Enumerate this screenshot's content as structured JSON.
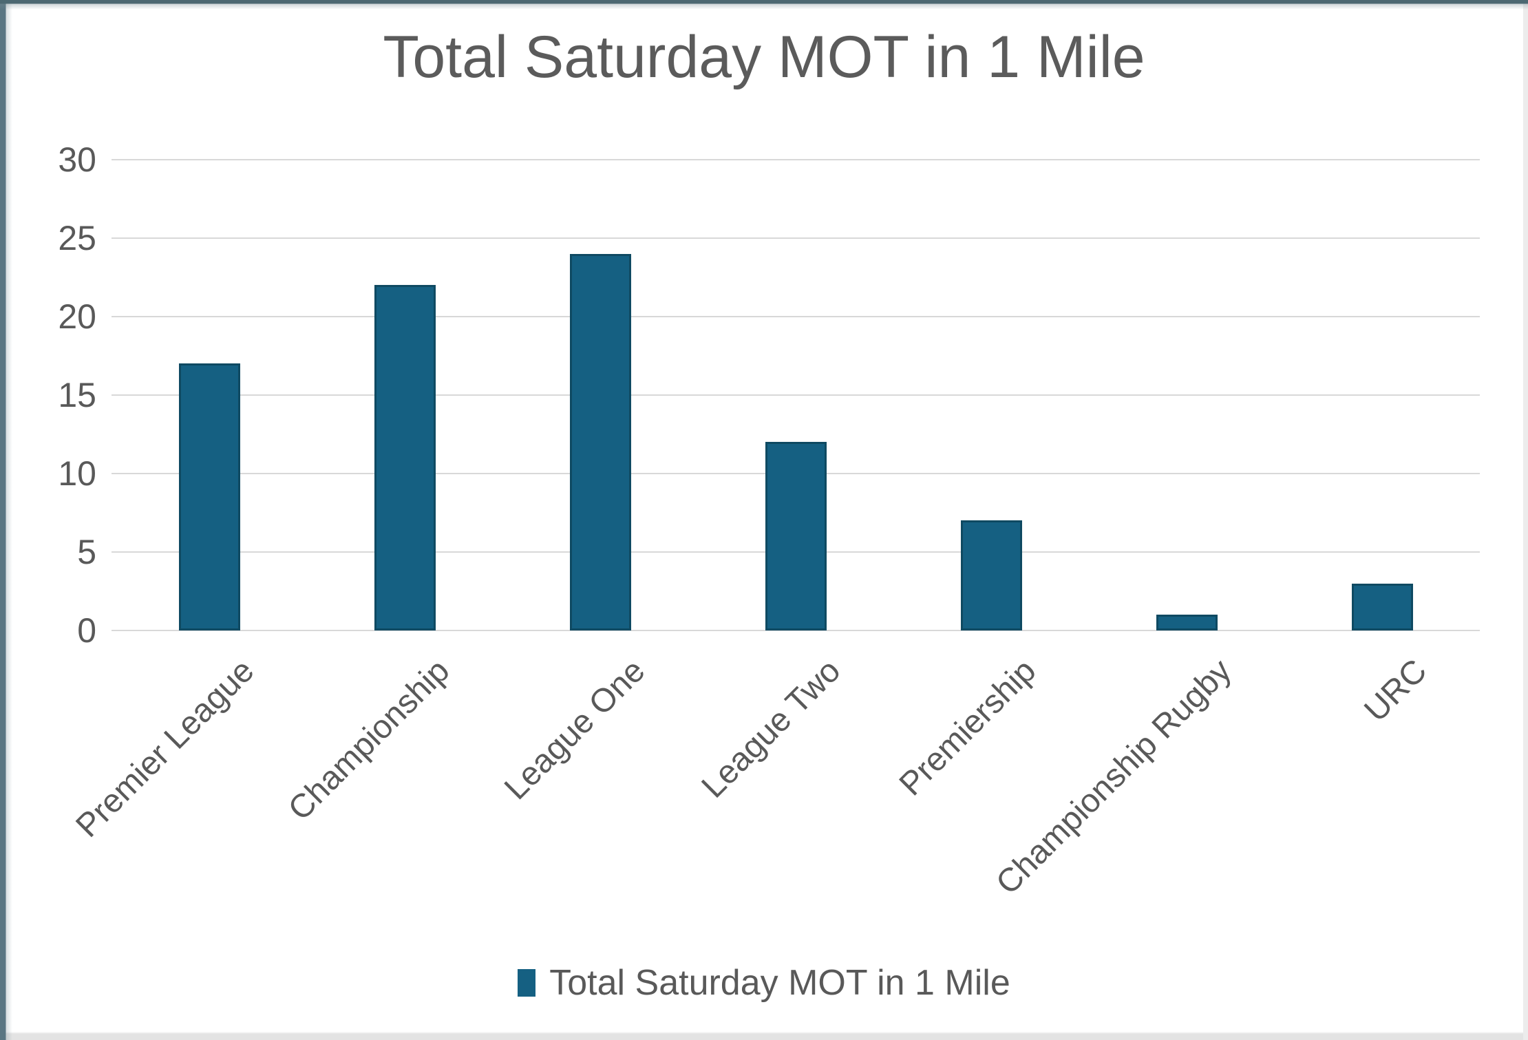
{
  "chart": {
    "title": "Total Saturday MOT in 1 Mile",
    "legend": {
      "label": "Total Saturday MOT in 1 Mile"
    }
  },
  "chart_data": {
    "type": "bar",
    "title": "Total Saturday MOT in 1 Mile",
    "categories": [
      "Premier League",
      "Championship",
      "League One",
      "League Two",
      "Premiership",
      "Championship Rugby",
      "URC"
    ],
    "values": [
      17,
      22,
      24,
      12,
      7,
      1,
      3
    ],
    "series_name": "Total Saturday MOT in 1 Mile",
    "xlabel": "",
    "ylabel": "",
    "ylim": [
      0,
      30
    ],
    "yticks": [
      0,
      5,
      10,
      15,
      20,
      25,
      30
    ],
    "grid": true,
    "legend_position": "bottom",
    "x_tick_rotation_deg": 45,
    "colors": {
      "bar_fill": "#156082",
      "bar_border": "#0f4a62",
      "gridline": "#d8d8d8",
      "text": "#595959",
      "title_text": "#5b5b5b"
    }
  },
  "frame": {
    "top_color": "#4c6872",
    "left_color": "#5a7683",
    "bottom_color": "#e3e3e3",
    "right_color": "#ececec"
  }
}
